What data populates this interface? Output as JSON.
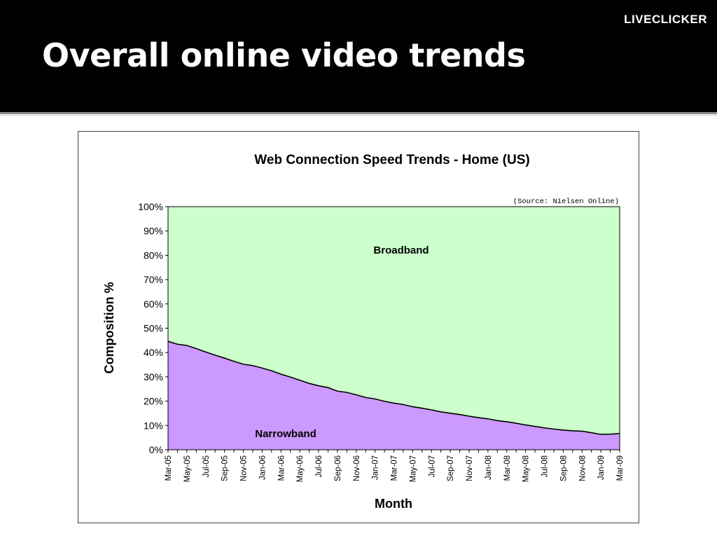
{
  "slide": {
    "brand": "LIVECLICKER",
    "title": "Overall online video trends"
  },
  "colors": {
    "header_bg": "#000000",
    "broadband_fill": "#ccffcc",
    "narrowband_fill": "#cc99ff",
    "boundary_line": "#000000"
  },
  "chart_data": {
    "type": "area",
    "stacked": true,
    "title": "Web Connection Speed Trends - Home (US)",
    "source_note": "(Source: Nielsen Online)",
    "xlabel": "Month",
    "ylabel": "Composition %",
    "ylim": [
      0,
      100
    ],
    "yticks": [
      "0%",
      "10%",
      "20%",
      "30%",
      "40%",
      "50%",
      "60%",
      "70%",
      "80%",
      "90%",
      "100%"
    ],
    "x_tick_labels": [
      "Mar-05",
      "May-05",
      "Jul-05",
      "Sep-05",
      "Nov-05",
      "Jan-06",
      "Mar-06",
      "May-06",
      "Jul-06",
      "Sep-06",
      "Nov-06",
      "Jan-07",
      "Mar-07",
      "May-07",
      "Jul-07",
      "Sep-07",
      "Nov-07",
      "Jan-08",
      "Mar-08",
      "May-08",
      "Jul-08",
      "Sep-08",
      "Nov-08",
      "Jan-09",
      "Mar-09"
    ],
    "months": [
      "Mar-05",
      "Apr-05",
      "May-05",
      "Jun-05",
      "Jul-05",
      "Aug-05",
      "Sep-05",
      "Oct-05",
      "Nov-05",
      "Dec-05",
      "Jan-06",
      "Feb-06",
      "Mar-06",
      "Apr-06",
      "May-06",
      "Jun-06",
      "Jul-06",
      "Aug-06",
      "Sep-06",
      "Oct-06",
      "Nov-06",
      "Dec-06",
      "Jan-07",
      "Feb-07",
      "Mar-07",
      "Apr-07",
      "May-07",
      "Jun-07",
      "Jul-07",
      "Aug-07",
      "Sep-07",
      "Oct-07",
      "Nov-07",
      "Dec-07",
      "Jan-08",
      "Feb-08",
      "Mar-08",
      "Apr-08",
      "May-08",
      "Jun-08",
      "Jul-08",
      "Aug-08",
      "Sep-08",
      "Oct-08",
      "Nov-08",
      "Dec-08",
      "Jan-09",
      "Feb-09",
      "Mar-09"
    ],
    "series": [
      {
        "name": "Narrowband",
        "values": [
          44.6,
          43.4,
          42.9,
          41.6,
          40.2,
          38.9,
          37.7,
          36.4,
          35.2,
          34.6,
          33.6,
          32.5,
          31.1,
          29.9,
          28.6,
          27.3,
          26.3,
          25.6,
          24.1,
          23.6,
          22.6,
          21.5,
          20.9,
          19.9,
          19.2,
          18.6,
          17.7,
          17.1,
          16.4,
          15.6,
          15.0,
          14.5,
          13.8,
          13.2,
          12.7,
          12.0,
          11.5,
          10.9,
          10.2,
          9.6,
          9.0,
          8.5,
          8.1,
          7.8,
          7.6,
          7.0,
          6.3,
          6.4,
          6.7
        ]
      },
      {
        "name": "Broadband",
        "values": [
          55.4,
          56.6,
          57.1,
          58.4,
          59.8,
          61.1,
          62.3,
          63.6,
          64.8,
          65.4,
          66.4,
          67.5,
          68.9,
          70.1,
          71.4,
          72.7,
          73.7,
          74.4,
          75.9,
          76.4,
          77.4,
          78.5,
          79.1,
          80.1,
          80.8,
          81.4,
          82.3,
          82.9,
          83.6,
          84.4,
          85.0,
          85.5,
          86.2,
          86.8,
          87.3,
          88.0,
          88.5,
          89.1,
          89.8,
          90.4,
          91.0,
          91.5,
          91.9,
          92.2,
          92.4,
          93.0,
          93.7,
          93.6,
          93.3
        ]
      }
    ],
    "area_labels": {
      "broadband": "Broadband",
      "narrowband": "Narrowband"
    },
    "grid": false,
    "legend": "none"
  }
}
